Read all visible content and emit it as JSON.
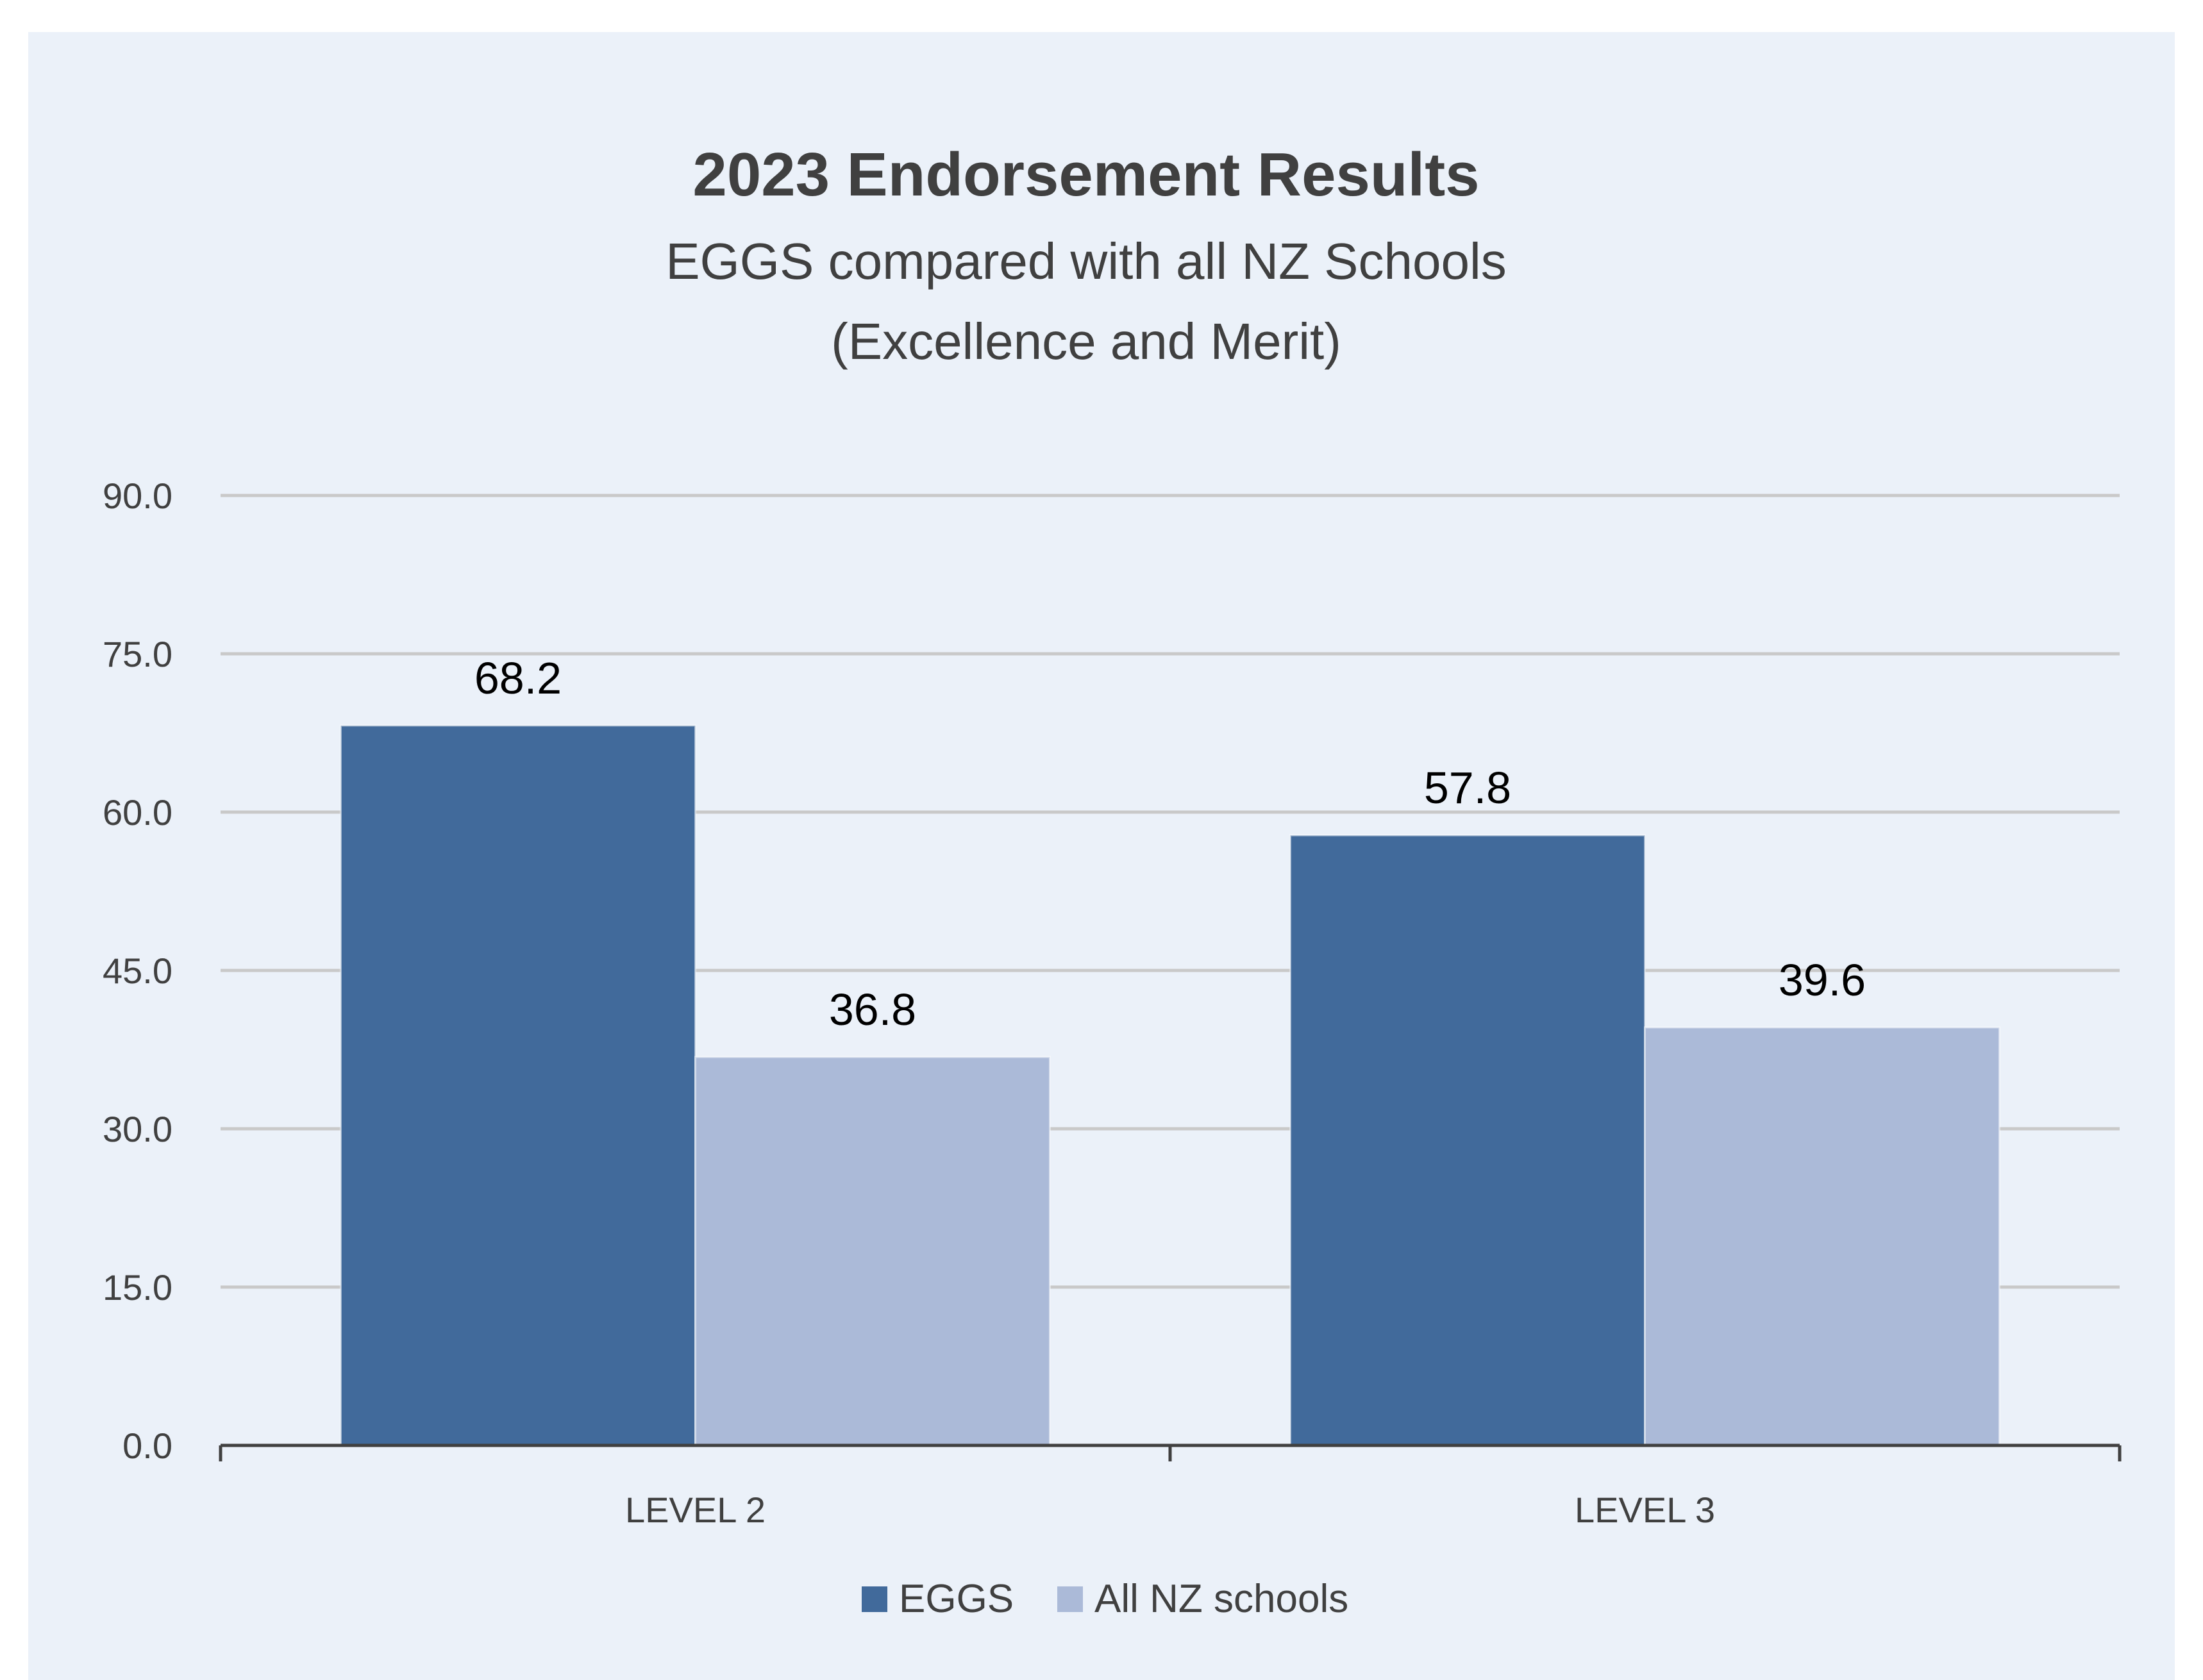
{
  "chart_data": {
    "type": "bar",
    "title": "2023 Endorsement Results",
    "subtitle_lines": [
      "EGGS compared with all NZ Schools",
      "(Excellence and Merit)"
    ],
    "xlabel": "",
    "ylabel": "",
    "categories": [
      "LEVEL 2",
      "LEVEL 3"
    ],
    "series": [
      {
        "name": "EGGS",
        "values": [
          68.2,
          57.8
        ],
        "labels": [
          "68.2",
          "57.8"
        ],
        "color": "#416a9b"
      },
      {
        "name": "All NZ schools",
        "values": [
          36.8,
          39.6
        ],
        "labels": [
          "36.8",
          "39.6"
        ],
        "color": "#abbad8"
      }
    ],
    "ylim": [
      0,
      90
    ],
    "yticks": [
      0,
      15,
      30,
      45,
      60,
      75,
      90
    ],
    "ytick_labels": [
      "0.0",
      "15.0",
      "30.0",
      "45.0",
      "60.0",
      "75.0",
      "90.0"
    ],
    "grid": true,
    "legend_position": "bottom",
    "background_color": "#ebf1f9",
    "gridline_color": "#c9c9c9",
    "axis_color": "#404040"
  }
}
